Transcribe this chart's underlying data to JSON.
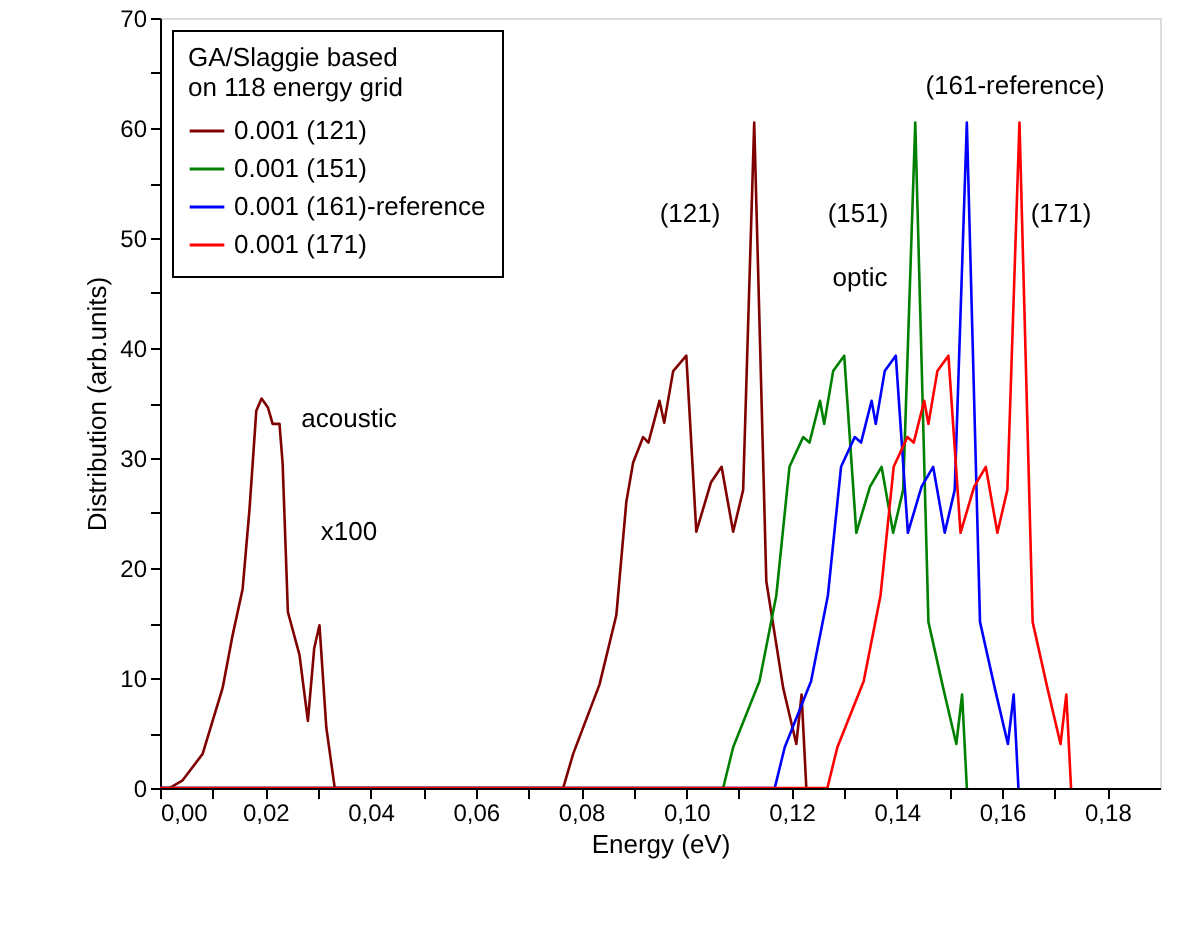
{
  "chart_data": {
    "type": "line",
    "xlabel": "Energy (eV)",
    "ylabel": "Distribution (arb.units)",
    "legend_title": "GA/Slaggie based on 118 energy grid",
    "legend": "top left",
    "grid": false,
    "line_style": "solid",
    "xlim": [
      0,
      0.19
    ],
    "ylim": [
      0,
      70
    ],
    "xticks": [
      {
        "value": 0,
        "label": "0,00"
      },
      {
        "value": 0.01,
        "label": null
      },
      {
        "value": 0.02,
        "label": "0,02"
      },
      {
        "value": 0.03,
        "label": null
      },
      {
        "value": 0.04,
        "label": "0,04"
      },
      {
        "value": 0.05,
        "label": null
      },
      {
        "value": 0.06,
        "label": "0,06"
      },
      {
        "value": 0.07,
        "label": null
      },
      {
        "value": 0.08,
        "label": "0,08"
      },
      {
        "value": 0.09,
        "label": null
      },
      {
        "value": 0.1,
        "label": "0,10"
      },
      {
        "value": 0.11,
        "label": null
      },
      {
        "value": 0.12,
        "label": "0,12"
      },
      {
        "value": 0.13,
        "label": null
      },
      {
        "value": 0.14,
        "label": "0,14"
      },
      {
        "value": 0.15,
        "label": null
      },
      {
        "value": 0.16,
        "label": "0,16"
      },
      {
        "value": 0.17,
        "label": null
      },
      {
        "value": 0.18,
        "label": "0,18"
      }
    ],
    "yticks": [
      0,
      {
        "value": 5,
        "label": null
      },
      10,
      {
        "value": 15,
        "label": null
      },
      20,
      {
        "value": 25,
        "label": null
      },
      30,
      {
        "value": 35,
        "label": null
      },
      40,
      {
        "value": 45,
        "label": null
      },
      50,
      {
        "value": 55,
        "label": null
      },
      60,
      {
        "value": 65,
        "label": null
      },
      70
    ],
    "series": [
      {
        "name": "0.001 (121)",
        "color": "#800000",
        "x": [
          0,
          0.0018,
          0.0043,
          0.0081,
          0.0119,
          0.0138,
          0.0157,
          0.017,
          0.0183,
          0.0193,
          0.0205,
          0.0214,
          0.0227,
          0.0233,
          0.0243,
          0.0265,
          0.0281,
          0.0293,
          0.0303,
          0.0316,
          0.0332,
          0.0766,
          0.0785,
          0.0835,
          0.0867,
          0.0886,
          0.0899,
          0.0918,
          0.0928,
          0.0949,
          0.0958,
          0.0975,
          0.1,
          0.1019,
          0.1047,
          0.1067,
          0.1089,
          0.1108,
          0.1129,
          0.1152,
          0.1184,
          0.1209,
          0.1219,
          0.1228
        ],
        "values": [
          0,
          0,
          0.7,
          3.1,
          9.1,
          13.9,
          18.1,
          25.3,
          34.3,
          35.4,
          34.6,
          33.1,
          33.1,
          29.5,
          16.0,
          12.1,
          6.1,
          12.7,
          14.8,
          5.5,
          0,
          0,
          3.1,
          9.4,
          15.7,
          26,
          29.6,
          31.9,
          31.4,
          35.2,
          33.2,
          37.9,
          39.3,
          23.3,
          27.8,
          29.2,
          23.3,
          27.1,
          60.5,
          18.8,
          9.1,
          4.0,
          8.5,
          0
        ]
      },
      {
        "name": "0.001 (151)",
        "color": "#008000",
        "x": [
          0,
          0.107,
          0.1089,
          0.1139,
          0.1171,
          0.1196,
          0.1222,
          0.1234,
          0.1254,
          0.1262,
          0.1279,
          0.13,
          0.1323,
          0.1349,
          0.1371,
          0.1393,
          0.1412,
          0.1435,
          0.146,
          0.1488,
          0.1513,
          0.1524,
          0.1533
        ],
        "values": [
          0,
          0,
          3.7,
          9.7,
          17.5,
          29.2,
          31.9,
          31.4,
          35.2,
          33.1,
          37.9,
          39.3,
          23.2,
          27.4,
          29.2,
          23.2,
          27.1,
          60.5,
          15.1,
          9.1,
          4.0,
          8.5,
          0
        ]
      },
      {
        "name": "0.001 (161)-reference",
        "color": "#0000ff",
        "x": [
          0,
          0.1168,
          0.1187,
          0.1237,
          0.1269,
          0.1294,
          0.132,
          0.1332,
          0.1352,
          0.136,
          0.1377,
          0.1398,
          0.1421,
          0.1447,
          0.1469,
          0.1491,
          0.151,
          0.1533,
          0.1558,
          0.1586,
          0.1611,
          0.1622,
          0.1631
        ],
        "values": [
          0,
          0,
          3.7,
          9.7,
          17.5,
          29.2,
          31.9,
          31.4,
          35.2,
          33.1,
          37.9,
          39.3,
          23.2,
          27.4,
          29.2,
          23.2,
          27.1,
          60.5,
          15.1,
          9.1,
          4.0,
          8.5,
          0
        ]
      },
      {
        "name": "0.001 (171)",
        "color": "#ff0000",
        "x": [
          0,
          0.1268,
          0.1287,
          0.1337,
          0.1369,
          0.1394,
          0.142,
          0.1432,
          0.1452,
          0.146,
          0.1477,
          0.1498,
          0.1521,
          0.1547,
          0.1569,
          0.1591,
          0.161,
          0.1633,
          0.1658,
          0.1686,
          0.1711,
          0.1722,
          0.1731
        ],
        "values": [
          0,
          0,
          3.7,
          9.7,
          17.5,
          29.2,
          31.9,
          31.4,
          35.2,
          33.1,
          37.9,
          39.3,
          23.2,
          27.4,
          29.2,
          23.2,
          27.1,
          60.5,
          15.1,
          9.1,
          4.0,
          8.5,
          0
        ]
      }
    ],
    "annotations": [
      "acoustic",
      "x100",
      "(121)",
      "optic",
      "(151)",
      "(161-reference)",
      "(171)"
    ]
  }
}
